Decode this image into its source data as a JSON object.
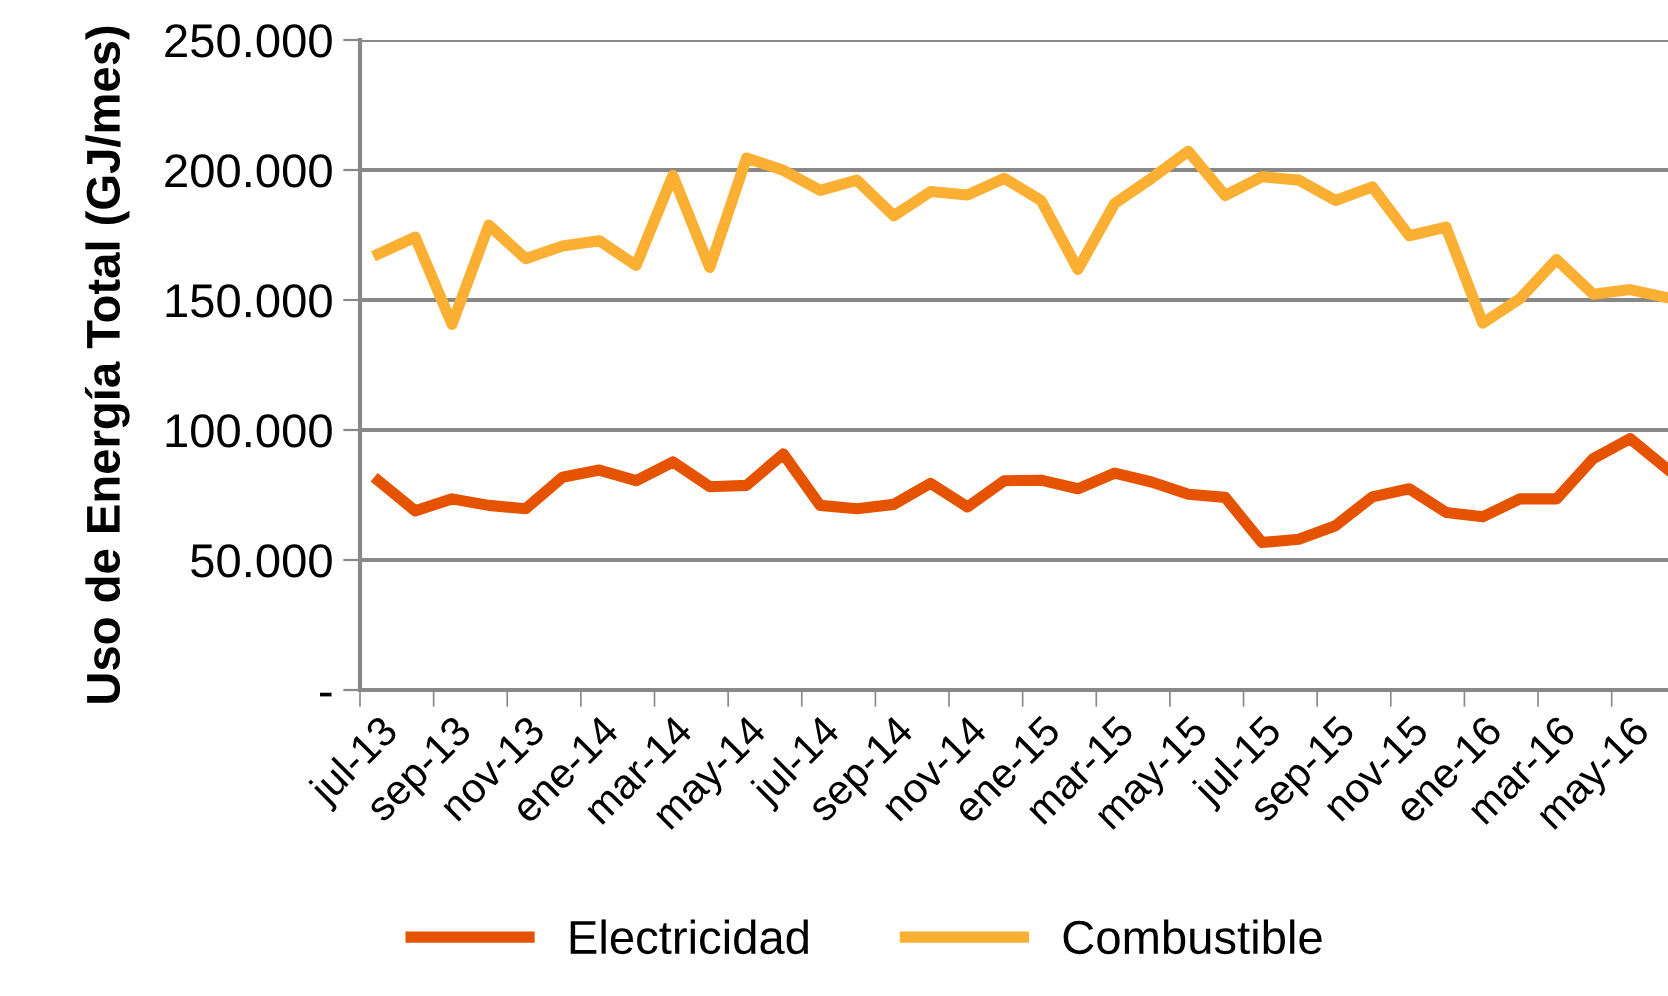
{
  "chart_data": {
    "type": "line",
    "ylabel": "Uso de Energía Total (GJ/mes)",
    "categories": [
      "jul-13",
      null,
      "sep-13",
      null,
      "nov-13",
      null,
      "ene-14",
      null,
      "mar-14",
      null,
      "may-14",
      null,
      "jul-14",
      null,
      "sep-14",
      null,
      "nov-14",
      null,
      "ene-15",
      null,
      "mar-15",
      null,
      "may-15",
      null,
      "jul-15",
      null,
      "sep-15",
      null,
      "nov-15",
      null,
      "ene-16",
      null,
      "mar-16",
      null,
      "may-16",
      null
    ],
    "series": [
      {
        "name": "Electricidad",
        "color": "#e65300",
        "values": [
          80500,
          68900,
          73500,
          71000,
          69700,
          81800,
          84600,
          80500,
          87700,
          78200,
          78700,
          90800,
          71000,
          69700,
          71400,
          79500,
          70400,
          80500,
          80700,
          77400,
          83400,
          80000,
          75300,
          74100,
          56700,
          58000,
          63200,
          74300,
          77400,
          68300,
          66600,
          73500,
          73500,
          89000,
          96700,
          85100
        ]
      },
      {
        "name": "Combustible",
        "color": "#fbb034",
        "values": [
          167700,
          174200,
          140600,
          178800,
          165900,
          170800,
          172800,
          163300,
          197900,
          162500,
          204600,
          199900,
          192200,
          196100,
          182400,
          191700,
          190400,
          196800,
          188300,
          161800,
          187100,
          196800,
          207200,
          190200,
          197400,
          196100,
          188300,
          193500,
          174700,
          178000,
          141100,
          150400,
          165600,
          152200,
          154000,
          150900
        ]
      }
    ],
    "ylim": [
      0,
      250000
    ],
    "yticks": [
      {
        "value": 0,
        "label": "-"
      },
      {
        "value": 50000,
        "label": "50.000"
      },
      {
        "value": 100000,
        "label": "100.000"
      },
      {
        "value": 150000,
        "label": "150.000"
      },
      {
        "value": 200000,
        "label": "200.000"
      },
      {
        "value": 250000,
        "label": "250.000"
      }
    ],
    "grid": "y",
    "legend": "bottom",
    "marker": "none",
    "line_style": "solid"
  }
}
